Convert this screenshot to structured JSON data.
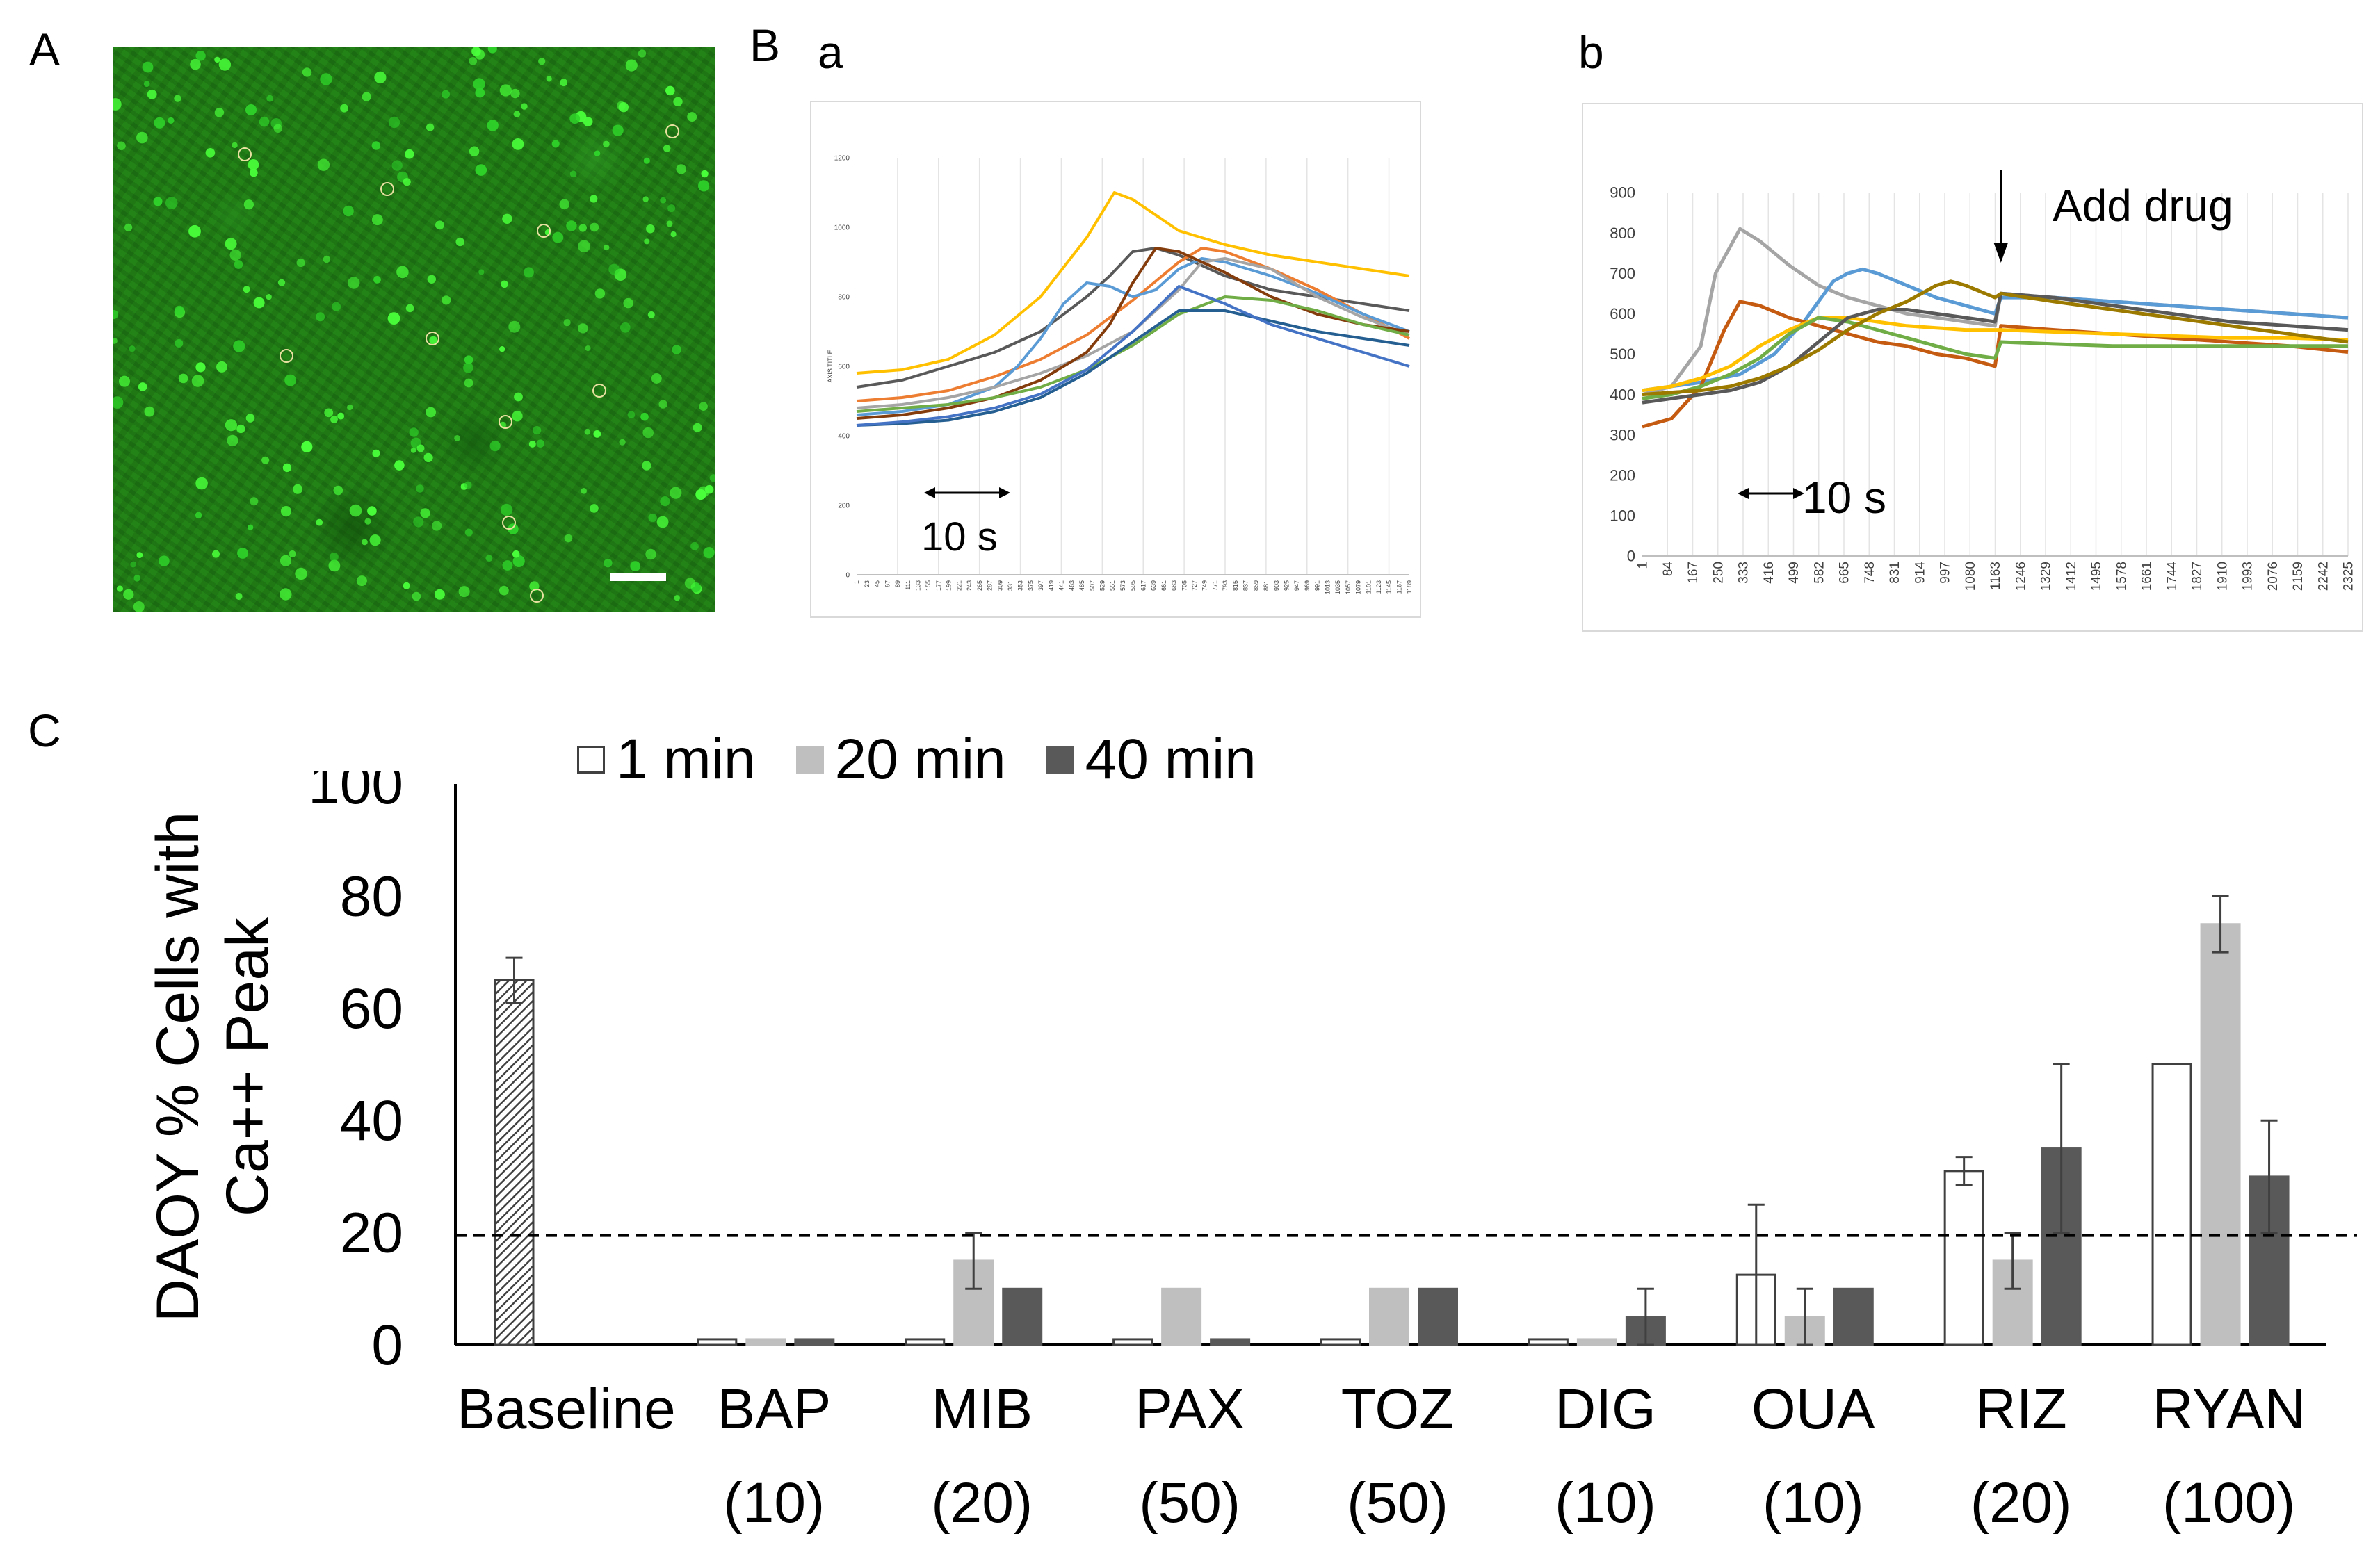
{
  "panels": {
    "A": {
      "letter": "A"
    },
    "B": {
      "letter": "B",
      "a": {
        "letter": "a",
        "y_axis_title": "AXIS TITLE",
        "y_ticks": [
          "0",
          "200",
          "400",
          "600",
          "800",
          "1000",
          "1200"
        ],
        "x_ticks": [
          "1",
          "23",
          "45",
          "67",
          "89",
          "111",
          "133",
          "155",
          "177",
          "199",
          "221",
          "243",
          "265",
          "287",
          "309",
          "331",
          "353",
          "375",
          "397",
          "419",
          "441",
          "463",
          "485",
          "507",
          "529",
          "551",
          "573",
          "595",
          "617",
          "639",
          "661",
          "683",
          "705",
          "727",
          "749",
          "771",
          "793",
          "815",
          "837",
          "859",
          "881",
          "903",
          "925",
          "947",
          "969",
          "991",
          "1013",
          "1035",
          "1057",
          "1079",
          "1101",
          "1123",
          "1145",
          "1167",
          "1189"
        ],
        "scale_label": "10 s"
      },
      "b": {
        "letter": "b",
        "y_ticks": [
          "0",
          "100",
          "200",
          "300",
          "400",
          "500",
          "600",
          "700",
          "800",
          "900"
        ],
        "x_ticks": [
          "1",
          "84",
          "167",
          "250",
          "333",
          "416",
          "499",
          "582",
          "665",
          "748",
          "831",
          "914",
          "997",
          "1080",
          "1163",
          "1246",
          "1329",
          "1412",
          "1495",
          "1578",
          "1661",
          "1744",
          "1827",
          "1910",
          "1993",
          "2076",
          "2159",
          "2242",
          "2325"
        ],
        "annotation": "Add drug",
        "scale_label": "10 s"
      }
    },
    "C": {
      "letter": "C"
    }
  },
  "chart_data": [
    {
      "type": "line",
      "panel": "Ba",
      "ylabel": "AXIS TITLE",
      "ylim": [
        0,
        1200
      ],
      "xlim": [
        1,
        1200
      ],
      "colors": [
        "#ffc000",
        "#595959",
        "#ed7d31",
        "#5b9bd5",
        "#a5a5a5",
        "#843c0c",
        "#70ad47",
        "#255e91",
        "#4472c4"
      ],
      "series": [
        {
          "x": [
            1,
            100,
            200,
            300,
            400,
            500,
            560,
            600,
            700,
            800,
            900,
            1000,
            1100,
            1200
          ],
          "values": [
            580,
            590,
            620,
            690,
            800,
            970,
            1100,
            1080,
            990,
            950,
            920,
            900,
            880,
            860
          ]
        },
        {
          "x": [
            1,
            100,
            200,
            300,
            400,
            500,
            550,
            600,
            650,
            700,
            800,
            900,
            1000,
            1100,
            1200
          ],
          "values": [
            540,
            560,
            600,
            640,
            700,
            800,
            860,
            930,
            940,
            920,
            860,
            820,
            800,
            780,
            760
          ]
        },
        {
          "x": [
            1,
            100,
            200,
            300,
            400,
            500,
            600,
            700,
            750,
            800,
            900,
            1000,
            1100,
            1200
          ],
          "values": [
            500,
            510,
            530,
            570,
            620,
            690,
            790,
            900,
            940,
            930,
            880,
            820,
            750,
            680
          ]
        },
        {
          "x": [
            1,
            100,
            200,
            300,
            350,
            400,
            450,
            500,
            550,
            600,
            650,
            700,
            750,
            800,
            900,
            1000,
            1100,
            1200
          ],
          "values": [
            460,
            470,
            490,
            540,
            600,
            680,
            780,
            840,
            830,
            800,
            820,
            880,
            910,
            900,
            860,
            810,
            750,
            700
          ]
        },
        {
          "x": [
            1,
            100,
            200,
            300,
            400,
            500,
            600,
            700,
            750,
            800,
            900,
            1000,
            1100,
            1200
          ],
          "values": [
            480,
            490,
            510,
            540,
            580,
            630,
            700,
            820,
            900,
            910,
            880,
            800,
            740,
            690
          ]
        },
        {
          "x": [
            1,
            100,
            200,
            300,
            400,
            500,
            550,
            600,
            650,
            700,
            800,
            900,
            1000,
            1100,
            1200
          ],
          "values": [
            450,
            460,
            480,
            510,
            560,
            640,
            720,
            840,
            940,
            930,
            870,
            800,
            750,
            720,
            700
          ]
        },
        {
          "x": [
            1,
            100,
            200,
            300,
            400,
            500,
            600,
            700,
            800,
            900,
            1000,
            1100,
            1200
          ],
          "values": [
            470,
            480,
            490,
            510,
            540,
            590,
            660,
            750,
            800,
            790,
            760,
            720,
            690
          ]
        },
        {
          "x": [
            1,
            100,
            200,
            300,
            400,
            500,
            600,
            700,
            800,
            900,
            1000,
            1100,
            1200
          ],
          "values": [
            430,
            435,
            445,
            470,
            510,
            580,
            670,
            760,
            760,
            730,
            700,
            680,
            660
          ]
        },
        {
          "x": [
            1,
            100,
            200,
            300,
            400,
            500,
            600,
            700,
            800,
            900,
            1000,
            1100,
            1200
          ],
          "values": [
            430,
            440,
            455,
            480,
            520,
            590,
            700,
            830,
            780,
            720,
            680,
            640,
            600
          ]
        }
      ]
    },
    {
      "type": "line",
      "panel": "Bb",
      "ylim": [
        0,
        900
      ],
      "xlim": [
        1,
        2400
      ],
      "annotation": "Add drug",
      "colors": [
        "#a5a5a5",
        "#5b9bd5",
        "#c55a11",
        "#ffc000",
        "#70ad47",
        "#595959",
        "#9c7a00"
      ],
      "series": [
        {
          "x": [
            1,
            100,
            200,
            250,
            333,
            400,
            500,
            600,
            700,
            800,
            900,
            1000,
            1100,
            1200,
            1220,
            1400,
            1600,
            1800,
            2000,
            2200,
            2400
          ],
          "values": [
            400,
            420,
            520,
            700,
            810,
            780,
            720,
            670,
            640,
            620,
            600,
            590,
            580,
            570,
            650,
            640,
            630,
            620,
            610,
            600,
            590
          ]
        },
        {
          "x": [
            1,
            200,
            333,
            450,
            550,
            650,
            700,
            750,
            800,
            900,
            1000,
            1100,
            1200,
            1220,
            1400,
            1600,
            1800,
            2000,
            2200,
            2400
          ],
          "values": [
            410,
            430,
            450,
            500,
            580,
            680,
            700,
            710,
            700,
            670,
            640,
            620,
            600,
            640,
            640,
            630,
            620,
            610,
            600,
            590
          ]
        },
        {
          "x": [
            1,
            100,
            200,
            280,
            333,
            400,
            500,
            600,
            700,
            800,
            900,
            1000,
            1100,
            1200,
            1220,
            1400,
            1600,
            1800,
            2000,
            2200,
            2400
          ],
          "values": [
            320,
            340,
            420,
            560,
            630,
            620,
            590,
            570,
            550,
            530,
            520,
            500,
            490,
            470,
            570,
            560,
            550,
            540,
            530,
            520,
            505
          ]
        },
        {
          "x": [
            1,
            100,
            200,
            300,
            400,
            500,
            600,
            700,
            800,
            900,
            1000,
            1100,
            1200,
            1220,
            1400,
            1600,
            1800,
            2000,
            2200,
            2400
          ],
          "values": [
            410,
            420,
            440,
            470,
            520,
            560,
            590,
            590,
            580,
            570,
            565,
            560,
            560,
            560,
            555,
            550,
            545,
            540,
            540,
            535
          ]
        },
        {
          "x": [
            1,
            100,
            200,
            300,
            400,
            500,
            600,
            700,
            800,
            900,
            1000,
            1100,
            1200,
            1220,
            1400,
            1600,
            1800,
            2000,
            2200,
            2400
          ],
          "values": [
            390,
            400,
            420,
            450,
            490,
            550,
            590,
            580,
            560,
            540,
            520,
            500,
            490,
            530,
            525,
            520,
            520,
            520,
            520,
            520
          ]
        },
        {
          "x": [
            1,
            100,
            200,
            300,
            400,
            500,
            600,
            700,
            800,
            900,
            1000,
            1100,
            1200,
            1220,
            1400,
            1600,
            1800,
            2000,
            2200,
            2400
          ],
          "values": [
            380,
            390,
            400,
            410,
            430,
            470,
            530,
            590,
            610,
            610,
            600,
            590,
            580,
            650,
            640,
            620,
            600,
            580,
            570,
            560
          ]
        },
        {
          "x": [
            1,
            100,
            200,
            300,
            400,
            500,
            600,
            700,
            800,
            900,
            1000,
            1050,
            1100,
            1200,
            1220,
            1400,
            1600,
            1800,
            2000,
            2200,
            2400
          ],
          "values": [
            400,
            405,
            410,
            420,
            440,
            470,
            510,
            560,
            600,
            630,
            670,
            680,
            670,
            640,
            650,
            630,
            610,
            590,
            570,
            550,
            530
          ]
        }
      ]
    },
    {
      "type": "bar",
      "panel": "C",
      "ylabel_lines": [
        "DAOY % Cells with",
        "Ca++ Peak"
      ],
      "ylim": [
        0,
        100
      ],
      "yticks": [
        "0",
        "20",
        "40",
        "60",
        "80",
        "100"
      ],
      "categories": [
        {
          "name": "Baseline",
          "dose": ""
        },
        {
          "name": "BAP",
          "dose": "(10)"
        },
        {
          "name": "MIB",
          "dose": "(20)"
        },
        {
          "name": "PAX",
          "dose": "(50)"
        },
        {
          "name": "TOZ",
          "dose": "(50)"
        },
        {
          "name": "DIG",
          "dose": "(10)"
        },
        {
          "name": "OUA",
          "dose": "(10)"
        },
        {
          "name": "RIZ",
          "dose": "(20)"
        },
        {
          "name": "RYAN",
          "dose": "(100)"
        }
      ],
      "baseline": {
        "value": 65,
        "error": 4
      },
      "series": [
        {
          "name": "1 min",
          "color": "#ffffff",
          "values": [
            null,
            1,
            1,
            1,
            1,
            1,
            12.5,
            31,
            50
          ],
          "errors": [
            null,
            0,
            0,
            0,
            0,
            0,
            12.5,
            2.5,
            0
          ]
        },
        {
          "name": "20 min",
          "color": "#bfbfbf",
          "values": [
            null,
            1,
            15,
            10,
            10,
            1,
            5,
            15,
            75
          ],
          "errors": [
            null,
            0,
            5,
            0,
            0,
            0,
            5,
            5,
            5
          ]
        },
        {
          "name": "40 min",
          "color": "#595959",
          "values": [
            null,
            1,
            10,
            1,
            10,
            5,
            10,
            35,
            30
          ],
          "errors": [
            null,
            0,
            0,
            0,
            0,
            5,
            0,
            15,
            10
          ]
        }
      ],
      "reference_line": 19.5
    }
  ]
}
